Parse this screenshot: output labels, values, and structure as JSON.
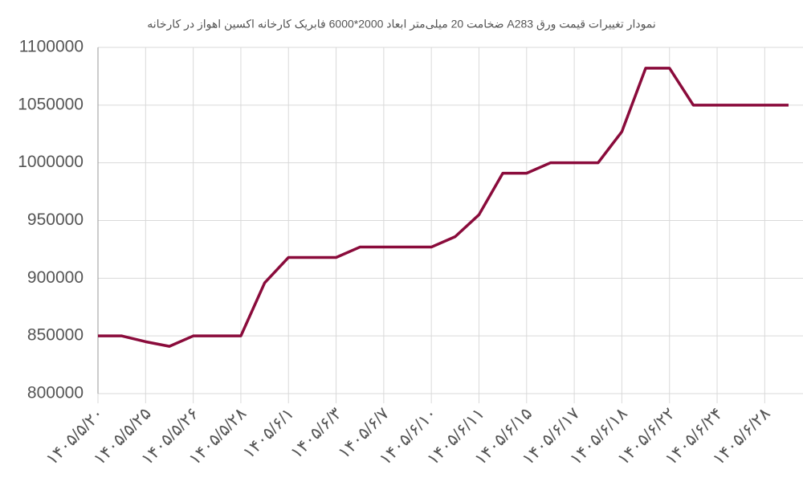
{
  "chart_data": {
    "type": "line",
    "title": "نمودار تغییرات قیمت ورق A283  ضخامت 20 میلی‌متر ابعاد 2000*6000 فابریک کارخانه اکسین اهواز در کارخانه",
    "categories": [
      "۱۴۰۵/۵/۲۰",
      null,
      "۱۴۰۵/۵/۲۵",
      null,
      "۱۴۰۵/۵/۲۶",
      null,
      "۱۴۰۵/۵/۲۸",
      null,
      "۱۴۰۵/۶/۱",
      null,
      "۱۴۰۵/۶/۳",
      null,
      "۱۴۰۵/۶/۷",
      null,
      "۱۴۰۵/۶/۱۰",
      null,
      "۱۴۰۵/۶/۱۱",
      null,
      "۱۴۰۵/۶/۱۵",
      null,
      "۱۴۰۵/۶/۱۷",
      null,
      "۱۴۰۵/۶/۱۸",
      null,
      "۱۴۰۵/۶/۲۲",
      null,
      "۱۴۰۵/۶/۲۴",
      null,
      "۱۴۰۵/۶/۲۸",
      null
    ],
    "series": [
      {
        "color": "#8a0b3b",
        "values": [
          850000,
          850000,
          845000,
          841000,
          850000,
          850000,
          850000,
          896000,
          918000,
          918000,
          918000,
          927000,
          927000,
          927000,
          927000,
          936000,
          955000,
          991000,
          991000,
          1000000,
          1000000,
          1000000,
          1027000,
          1082000,
          1082000,
          1050000,
          1050000,
          1050000,
          1050000,
          1050000
        ]
      }
    ],
    "ylim": [
      800000,
      1100000
    ],
    "yticks": [
      800000,
      850000,
      900000,
      950000,
      1000000,
      1050000,
      1100000
    ],
    "grid": true
  }
}
